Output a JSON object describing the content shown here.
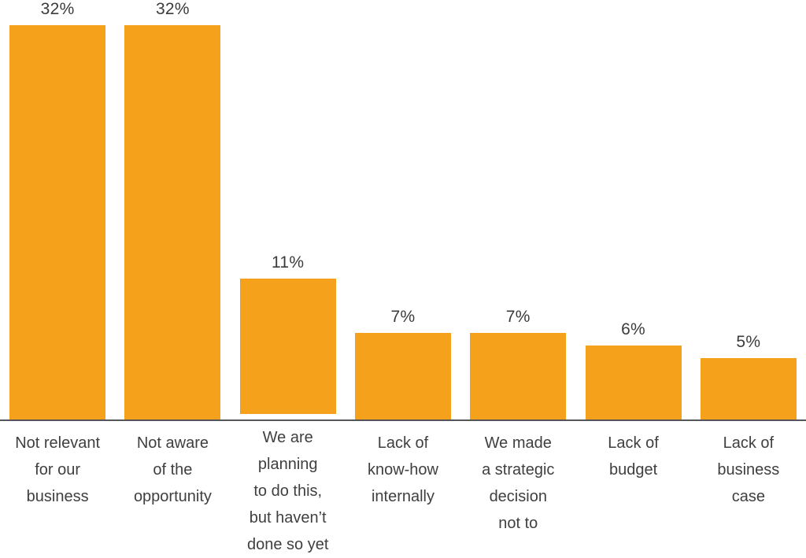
{
  "chart_data": {
    "type": "bar",
    "title": "",
    "xlabel": "",
    "ylabel": "",
    "ylim": [
      0,
      34
    ],
    "grid": false,
    "legend_position": "none",
    "bar_color": "#F5A11B",
    "axis_color": "#55565A",
    "categories": [
      "Not relevant for our business",
      "Not aware of the opportunity",
      "We are planning to do this, but haven’t done so yet",
      "Lack of know-how internally",
      "We made a strategic decision not to",
      "Lack of budget",
      "Lack of business case"
    ],
    "category_lines": [
      [
        "Not relevant",
        "for our",
        "business"
      ],
      [
        "Not aware",
        "of the",
        "opportunity"
      ],
      [
        "We are",
        "planning",
        "to do this,",
        "but haven’t",
        "done so yet"
      ],
      [
        "Lack of",
        "know-how",
        "internally"
      ],
      [
        "We made",
        "a strategic",
        "decision",
        "not to"
      ],
      [
        "Lack of",
        "budget"
      ],
      [
        "Lack of",
        "business",
        "case"
      ]
    ],
    "values": [
      32,
      32,
      11,
      7,
      7,
      6,
      5
    ],
    "labels": [
      "32%",
      "32%",
      "11%",
      "7%",
      "7%",
      "6%",
      "5%"
    ]
  }
}
